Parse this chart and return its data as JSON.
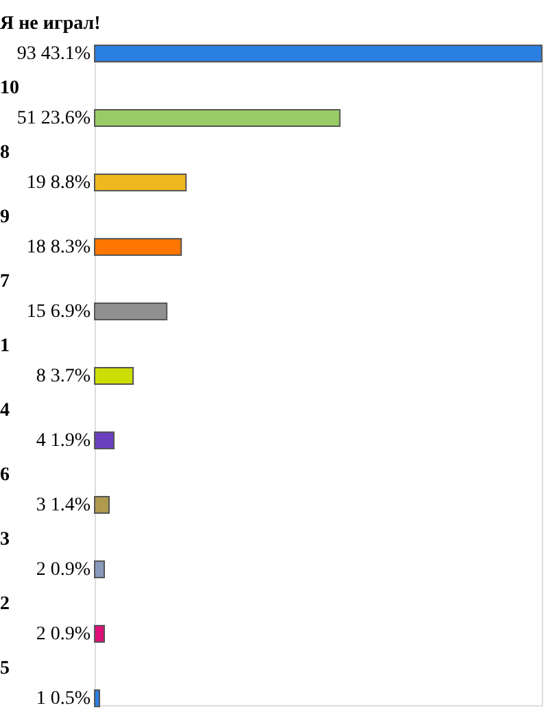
{
  "chart_data": {
    "type": "bar",
    "orientation": "horizontal",
    "categories": [
      "Я не играл!",
      "10",
      "8",
      "9",
      "7",
      "1",
      "4",
      "6",
      "3",
      "2",
      "5"
    ],
    "values": [
      93,
      51,
      19,
      18,
      15,
      8,
      4,
      3,
      2,
      2,
      1
    ],
    "value_labels": [
      "93 43.1%",
      "51 23.6%",
      "19 8.8%",
      "18 8.3%",
      "15 6.9%",
      "8 3.7%",
      "4 1.9%",
      "3 1.4%",
      "2 0.9%",
      "2 0.9%",
      "1 0.5%"
    ],
    "colors": [
      "#2a7fe0",
      "#99cc66",
      "#f0b820",
      "#ff7700",
      "#909090",
      "#ccdd00",
      "#6a3fbf",
      "#b09a50",
      "#8899bb",
      "#dd1177",
      "#2a7fe0"
    ]
  }
}
